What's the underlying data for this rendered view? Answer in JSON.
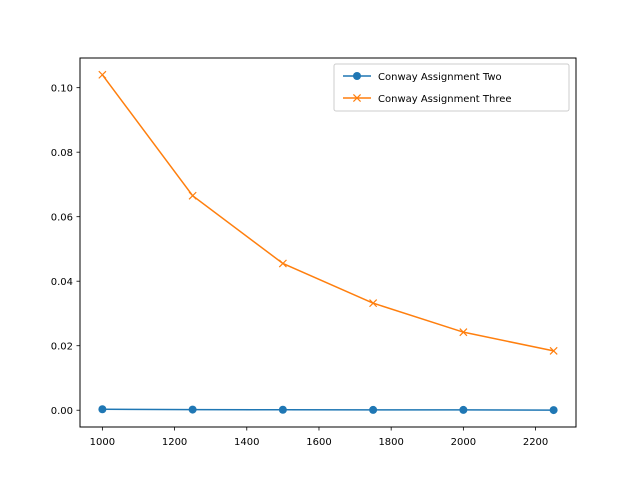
{
  "chart_data": {
    "type": "line",
    "title": "",
    "xlabel": "",
    "ylabel": "",
    "x": [
      1000,
      1250,
      1500,
      1750,
      2000,
      2250
    ],
    "xlim": [
      938,
      2312
    ],
    "ylim": [
      -0.0052,
      0.1092
    ],
    "xticks": [
      1000,
      1200,
      1400,
      1600,
      1800,
      2000,
      2200
    ],
    "yticks": [
      0.0,
      0.02,
      0.04,
      0.06,
      0.08,
      0.1
    ],
    "ytick_labels": [
      "0.00",
      "0.02",
      "0.04",
      "0.06",
      "0.08",
      "0.10"
    ],
    "grid": false,
    "legend_position": "top-right",
    "series": [
      {
        "name": "Conway Assignment Two",
        "color": "#1f77b4",
        "marker": "circle",
        "values": [
          0.0003,
          0.0002,
          0.00015,
          0.0001,
          0.0001,
          5e-05
        ]
      },
      {
        "name": "Conway Assignment Three",
        "color": "#ff7f0e",
        "marker": "x",
        "values": [
          0.104,
          0.0665,
          0.0455,
          0.0332,
          0.0242,
          0.0184
        ]
      }
    ]
  }
}
